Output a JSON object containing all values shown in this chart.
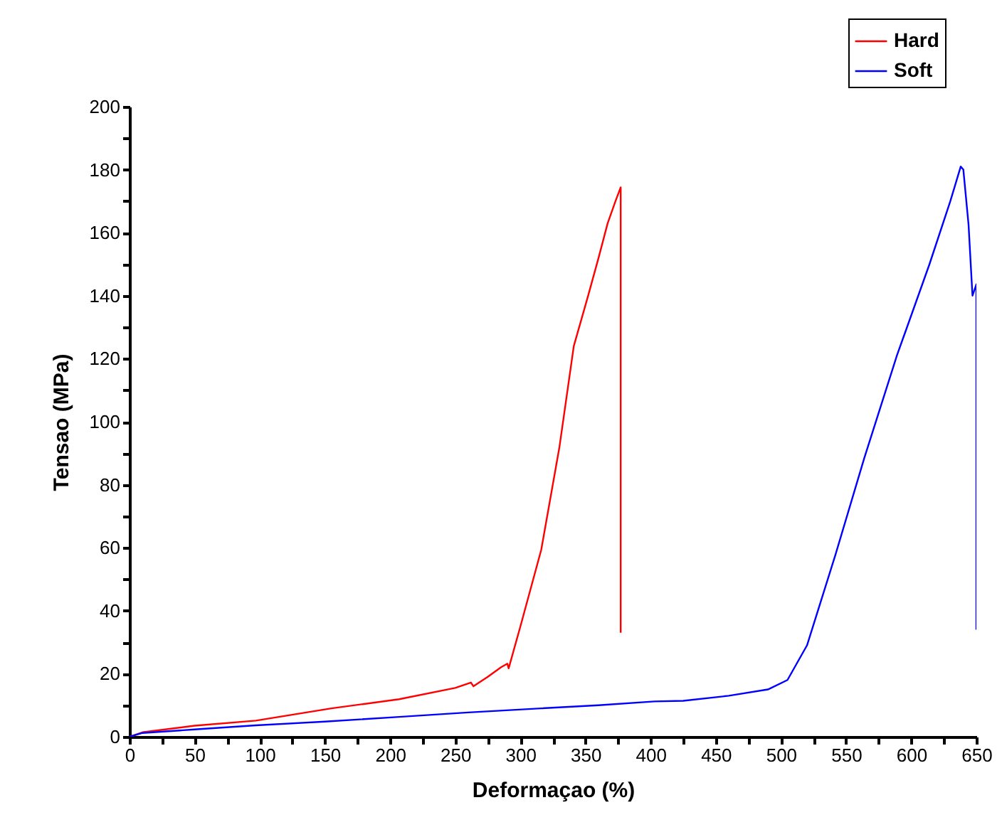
{
  "chart_data": {
    "type": "line",
    "xlabel": "Deformaçao (%)",
    "ylabel": "Tensao (MPa)",
    "xlim": [
      0,
      650
    ],
    "ylim": [
      0,
      200
    ],
    "xticks": [
      0,
      {
        "value": 25,
        "label": null
      },
      50,
      {
        "value": 75,
        "label": null
      },
      100,
      {
        "value": 125,
        "label": null
      },
      150,
      {
        "value": 175,
        "label": null
      },
      200,
      {
        "value": 225,
        "label": null
      },
      250,
      {
        "value": 275,
        "label": null
      },
      300,
      {
        "value": 325,
        "label": null
      },
      350,
      {
        "value": 375,
        "label": null
      },
      400,
      {
        "value": 425,
        "label": null
      },
      450,
      {
        "value": 475,
        "label": null
      },
      500,
      {
        "value": 525,
        "label": null
      },
      550,
      {
        "value": 575,
        "label": null
      },
      600,
      {
        "value": 625,
        "label": null
      },
      650
    ],
    "yticks": [
      0,
      {
        "value": 10,
        "label": null
      },
      20,
      {
        "value": 30,
        "label": null
      },
      40,
      {
        "value": 50,
        "label": null
      },
      60,
      {
        "value": 70,
        "label": null
      },
      80,
      {
        "value": 90,
        "label": null
      },
      100,
      {
        "value": 110,
        "label": null
      },
      120,
      {
        "value": 130,
        "label": null
      },
      140,
      {
        "value": 150,
        "label": null
      },
      160,
      {
        "value": 170,
        "label": null
      },
      180,
      {
        "value": 190,
        "label": null
      },
      200
    ],
    "grid": false,
    "legend": "top right",
    "marker": "none",
    "line_style": "solid",
    "series": [
      {
        "name": "Hard",
        "color": "#ff0000",
        "x": [
          0,
          10,
          50,
          97,
          155,
          207,
          250,
          262,
          264,
          275,
          285,
          290,
          291,
          300,
          316,
          330,
          341,
          352,
          360,
          367,
          373,
          377,
          377,
          377
        ],
        "values": [
          0,
          1.4,
          3.5,
          5.1,
          9.0,
          11.9,
          15.5,
          17.2,
          16,
          19,
          22,
          23.2,
          21.7,
          35,
          59.3,
          92,
          124,
          140,
          152,
          163,
          170,
          174.4,
          160,
          33
        ]
      },
      {
        "name": "Soft",
        "color": "#0000ff",
        "x": [
          0,
          10,
          50,
          97,
          150,
          207,
          260,
          316,
          360,
          403,
          425,
          460,
          490,
          505,
          520,
          542,
          564,
          589,
          614,
          630,
          638,
          640,
          644,
          647,
          650,
          650
        ],
        "values": [
          0,
          1.2,
          2.3,
          3.6,
          4.8,
          6.3,
          7.7,
          9.0,
          10,
          11.2,
          11.4,
          13,
          15,
          18,
          29,
          58,
          88.5,
          121,
          150,
          170,
          181,
          180,
          162.5,
          140,
          143.6,
          34
        ]
      }
    ]
  }
}
